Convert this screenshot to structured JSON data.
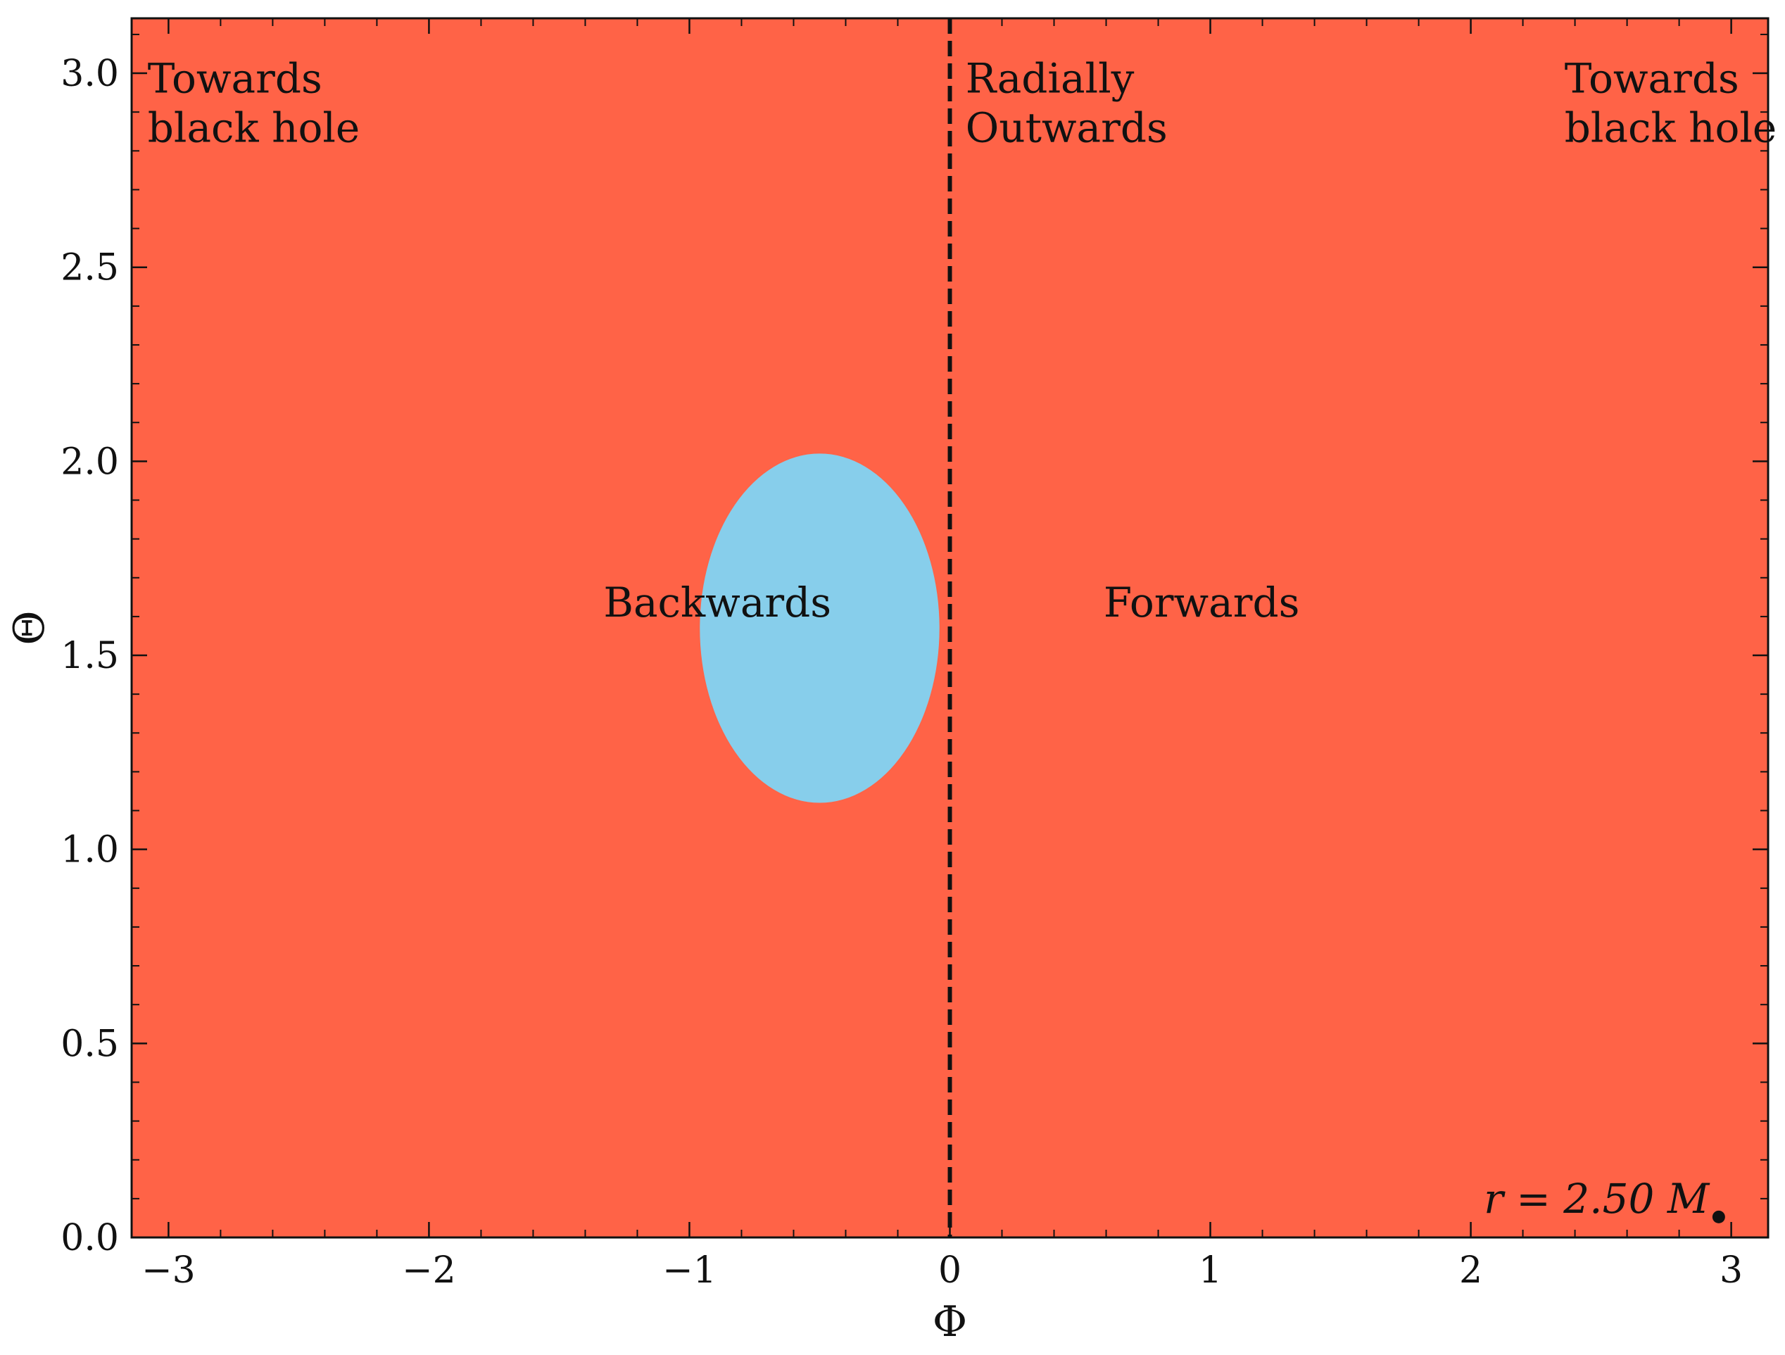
{
  "chart_data": {
    "type": "heatmap",
    "title": "",
    "xlabel": "Φ",
    "ylabel": "Θ",
    "xlim": [
      -3.14159,
      3.14159
    ],
    "ylim": [
      0,
      3.14159
    ],
    "x_ticks": [
      -3,
      -2,
      -1,
      0,
      1,
      2,
      3
    ],
    "x_tick_labels": [
      "−3",
      "−2",
      "−1",
      "0",
      "1",
      "2",
      "3"
    ],
    "y_ticks": [
      0.0,
      0.5,
      1.0,
      1.5,
      2.0,
      2.5,
      3.0
    ],
    "y_tick_labels": [
      "0.0",
      "0.5",
      "1.0",
      "1.5",
      "2.0",
      "2.5",
      "3.0"
    ],
    "grid": false,
    "regions": [
      {
        "fill": "#ff6347",
        "extent": "full"
      },
      {
        "fill": "#87ceeb",
        "shape": "ellipse",
        "center_phi": -0.5,
        "center_theta": 1.57,
        "half_width_phi": 0.46,
        "half_height_theta": 0.45
      }
    ],
    "reference_line": {
      "phi": 0,
      "style": "dashed",
      "color": "#111111"
    },
    "annotations": [
      {
        "lines": [
          "Towards",
          "black hole"
        ],
        "phi": -3.08,
        "theta": 2.95
      },
      {
        "lines": [
          "Radially",
          "Outwards"
        ],
        "phi": 0.06,
        "theta": 2.95
      },
      {
        "lines": [
          "Towards",
          "black hole"
        ],
        "phi": 2.36,
        "theta": 2.95
      },
      {
        "lines": [
          "Backwards"
        ],
        "phi": -1.33,
        "theta": 1.6
      },
      {
        "lines": [
          "Forwards"
        ],
        "phi": 0.59,
        "theta": 1.6
      }
    ],
    "radius_label": {
      "prefix": "r = 2.50",
      "symbol": "M",
      "phi": 2.05,
      "theta": 0.1
    }
  }
}
